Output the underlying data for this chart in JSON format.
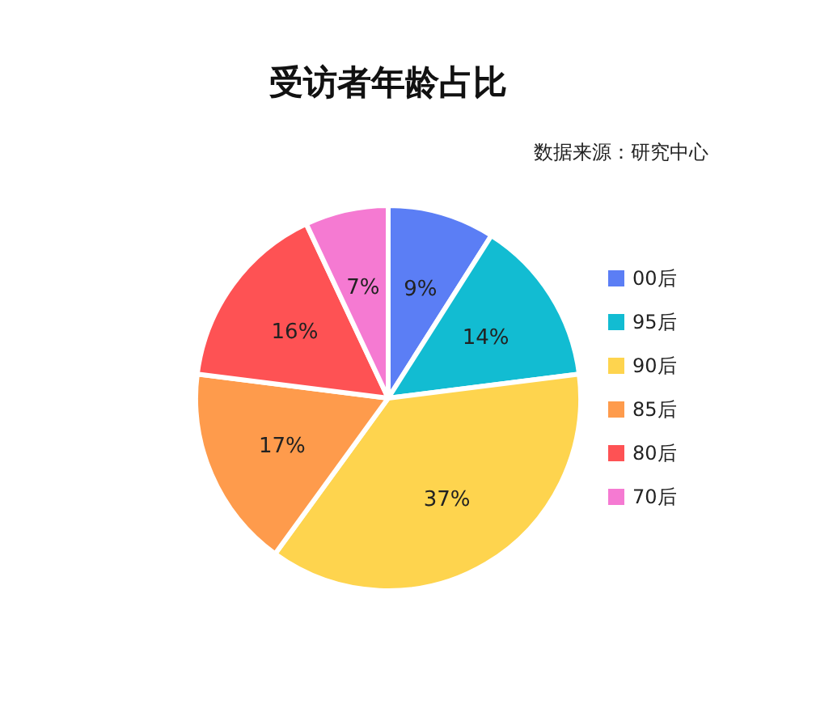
{
  "chart_data": {
    "type": "pie",
    "title": "受访者年龄占比",
    "annotations": [
      "数据来源：研究中心"
    ],
    "categories": [
      "00后",
      "95后",
      "90后",
      "85后",
      "80后",
      "70后"
    ],
    "values": [
      9,
      14,
      37,
      17,
      16,
      7
    ],
    "colors": [
      "#5b7ef5",
      "#12bcd2",
      "#fed44e",
      "#fe9b4c",
      "#fe5254",
      "#f57ad2"
    ],
    "value_labels": [
      "9%",
      "14%",
      "37%",
      "17%",
      "16%",
      "7%"
    ],
    "legend": "right"
  }
}
